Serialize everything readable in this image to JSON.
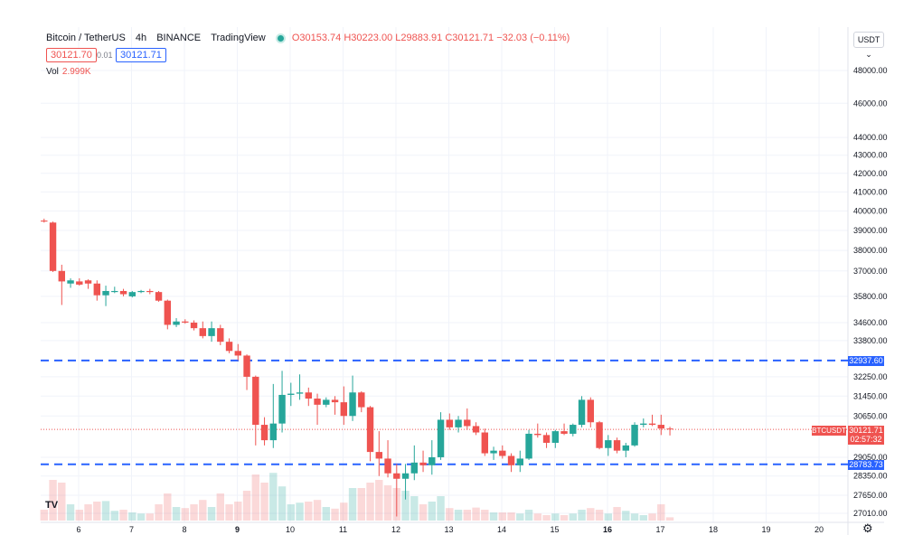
{
  "header": {
    "symbol": "Bitcoin / TetherUS",
    "interval": "4h",
    "exchange": "BINANCE",
    "source": "TradingView",
    "open": "O30153.74",
    "high": "H30223.00",
    "low": "L29883.91",
    "close": "C30121.71",
    "change": "−32.03 (−0.11%)",
    "bid": "30121.70",
    "spread": "0.01",
    "ask": "30121.71",
    "volume_label": "Vol",
    "volume_value": "2.999K",
    "currency": "USDT"
  },
  "labels": {
    "line_upper": "32937.60",
    "line_lower": "28783.73",
    "symbol_tag": "BTCUSDT",
    "last_price": "30121.71",
    "countdown": "02:57:32",
    "logo": "TV"
  },
  "colors": {
    "up": "#26a69a",
    "down": "#ef5350",
    "line": "#2962ff"
  },
  "icons": {
    "settings": "gear-icon",
    "logo": "tradingview-logo-icon"
  },
  "chart_data": {
    "type": "candlestick",
    "scale": "log",
    "y_ticks": [
      48000,
      46000,
      44000,
      43000,
      42000,
      41000,
      40000,
      39000,
      38000,
      37000,
      35800,
      34600,
      33800,
      32250,
      31450,
      30650,
      29050,
      28350,
      27650,
      27010
    ],
    "y_tick_labels": [
      "48000.00",
      "46000.00",
      "44000.00",
      "43000.00",
      "42000.00",
      "41000.00",
      "40000.00",
      "39000.00",
      "38000.00",
      "37000.00",
      "35800.00",
      "34600.00",
      "33800.00",
      "32250.00",
      "31450.00",
      "30650.00",
      "29050.00",
      "28350.00",
      "27650.00",
      "27010.00"
    ],
    "x_ticks": [
      "6",
      "7",
      "8",
      "9",
      "10",
      "11",
      "12",
      "13",
      "14",
      "15",
      "16",
      "17",
      "18",
      "19",
      "20"
    ],
    "bold_x_ticks": [
      "9",
      "16"
    ],
    "horizontal_lines": [
      32937.6,
      28783.73
    ],
    "last_price": 30121.71,
    "candles": [
      {
        "o": 39500,
        "h": 39600,
        "l": 39400,
        "c": 39450,
        "v": 0.2
      },
      {
        "o": 39400,
        "h": 39450,
        "l": 36950,
        "c": 37000,
        "v": 0.75
      },
      {
        "o": 37000,
        "h": 37300,
        "l": 35400,
        "c": 36500,
        "v": 0.7
      },
      {
        "o": 36400,
        "h": 36650,
        "l": 36200,
        "c": 36550,
        "v": 0.3
      },
      {
        "o": 36500,
        "h": 36650,
        "l": 36300,
        "c": 36350,
        "v": 0.2
      },
      {
        "o": 36550,
        "h": 36600,
        "l": 36150,
        "c": 36400,
        "v": 0.3
      },
      {
        "o": 36400,
        "h": 36550,
        "l": 35600,
        "c": 35850,
        "v": 0.35
      },
      {
        "o": 35850,
        "h": 36300,
        "l": 35350,
        "c": 36050,
        "v": 0.36
      },
      {
        "o": 36000,
        "h": 36250,
        "l": 35950,
        "c": 36050,
        "v": 0.18
      },
      {
        "o": 36050,
        "h": 36150,
        "l": 35800,
        "c": 35900,
        "v": 0.2
      },
      {
        "o": 35800,
        "h": 36050,
        "l": 35750,
        "c": 36000,
        "v": 0.15
      },
      {
        "o": 36000,
        "h": 36100,
        "l": 35950,
        "c": 36050,
        "v": 0.13
      },
      {
        "o": 36050,
        "h": 36150,
        "l": 35900,
        "c": 36000,
        "v": 0.13
      },
      {
        "o": 36000,
        "h": 36050,
        "l": 35550,
        "c": 35600,
        "v": 0.3
      },
      {
        "o": 35600,
        "h": 35650,
        "l": 34300,
        "c": 34500,
        "v": 0.5
      },
      {
        "o": 34500,
        "h": 34800,
        "l": 34400,
        "c": 34650,
        "v": 0.25
      },
      {
        "o": 34650,
        "h": 34750,
        "l": 34550,
        "c": 34600,
        "v": 0.23
      },
      {
        "o": 34600,
        "h": 34700,
        "l": 34250,
        "c": 34350,
        "v": 0.3
      },
      {
        "o": 34350,
        "h": 34650,
        "l": 33900,
        "c": 34000,
        "v": 0.38
      },
      {
        "o": 34000,
        "h": 34650,
        "l": 33750,
        "c": 34350,
        "v": 0.25
      },
      {
        "o": 34350,
        "h": 34500,
        "l": 33600,
        "c": 33750,
        "v": 0.5
      },
      {
        "o": 33750,
        "h": 33900,
        "l": 33250,
        "c": 33350,
        "v": 0.3
      },
      {
        "o": 33350,
        "h": 33650,
        "l": 32950,
        "c": 33150,
        "v": 0.35
      },
      {
        "o": 33150,
        "h": 33200,
        "l": 31700,
        "c": 32250,
        "v": 0.55
      },
      {
        "o": 32250,
        "h": 32300,
        "l": 29500,
        "c": 30300,
        "v": 0.85
      },
      {
        "o": 30300,
        "h": 30600,
        "l": 29500,
        "c": 29700,
        "v": 0.7
      },
      {
        "o": 29700,
        "h": 31950,
        "l": 29400,
        "c": 30350,
        "v": 0.88
      },
      {
        "o": 30350,
        "h": 32500,
        "l": 30000,
        "c": 31500,
        "v": 0.63
      },
      {
        "o": 31500,
        "h": 32000,
        "l": 31050,
        "c": 31550,
        "v": 0.3
      },
      {
        "o": 31550,
        "h": 32350,
        "l": 31300,
        "c": 31600,
        "v": 0.33
      },
      {
        "o": 31600,
        "h": 31800,
        "l": 31050,
        "c": 31350,
        "v": 0.35
      },
      {
        "o": 31350,
        "h": 31550,
        "l": 30300,
        "c": 31100,
        "v": 0.38
      },
      {
        "o": 31100,
        "h": 31400,
        "l": 31000,
        "c": 31300,
        "v": 0.25
      },
      {
        "o": 31300,
        "h": 31450,
        "l": 30700,
        "c": 31200,
        "v": 0.22
      },
      {
        "o": 31200,
        "h": 31850,
        "l": 30300,
        "c": 30650,
        "v": 0.33
      },
      {
        "o": 30650,
        "h": 32300,
        "l": 30450,
        "c": 31600,
        "v": 0.6
      },
      {
        "o": 31600,
        "h": 31650,
        "l": 30800,
        "c": 31000,
        "v": 0.6
      },
      {
        "o": 31000,
        "h": 31050,
        "l": 28900,
        "c": 29250,
        "v": 0.7
      },
      {
        "o": 29250,
        "h": 30050,
        "l": 28350,
        "c": 29000,
        "v": 0.75
      },
      {
        "o": 29000,
        "h": 29700,
        "l": 28300,
        "c": 28450,
        "v": 0.65
      },
      {
        "o": 28450,
        "h": 28800,
        "l": 26900,
        "c": 28250,
        "v": 0.6
      },
      {
        "o": 28250,
        "h": 28800,
        "l": 27500,
        "c": 28450,
        "v": 0.55
      },
      {
        "o": 28450,
        "h": 29500,
        "l": 28200,
        "c": 28850,
        "v": 0.45
      },
      {
        "o": 28850,
        "h": 29300,
        "l": 28500,
        "c": 28750,
        "v": 0.3
      },
      {
        "o": 28750,
        "h": 29700,
        "l": 28400,
        "c": 29050,
        "v": 0.35
      },
      {
        "o": 29050,
        "h": 30800,
        "l": 28950,
        "c": 30500,
        "v": 0.45
      },
      {
        "o": 30500,
        "h": 30750,
        "l": 30100,
        "c": 30200,
        "v": 0.23
      },
      {
        "o": 30200,
        "h": 30650,
        "l": 30000,
        "c": 30500,
        "v": 0.2
      },
      {
        "o": 30500,
        "h": 30950,
        "l": 30100,
        "c": 30250,
        "v": 0.2
      },
      {
        "o": 30250,
        "h": 30400,
        "l": 29900,
        "c": 30000,
        "v": 0.24
      },
      {
        "o": 30000,
        "h": 30150,
        "l": 29100,
        "c": 29200,
        "v": 0.2
      },
      {
        "o": 29200,
        "h": 29450,
        "l": 28950,
        "c": 29300,
        "v": 0.15
      },
      {
        "o": 29300,
        "h": 29500,
        "l": 29000,
        "c": 29100,
        "v": 0.15
      },
      {
        "o": 29100,
        "h": 29200,
        "l": 28500,
        "c": 28750,
        "v": 0.15
      },
      {
        "o": 28750,
        "h": 29300,
        "l": 28500,
        "c": 29000,
        "v": 0.13
      },
      {
        "o": 29000,
        "h": 30100,
        "l": 28950,
        "c": 29950,
        "v": 0.2
      },
      {
        "o": 29950,
        "h": 30350,
        "l": 29800,
        "c": 29900,
        "v": 0.13
      },
      {
        "o": 29900,
        "h": 30000,
        "l": 29400,
        "c": 29600,
        "v": 0.1
      },
      {
        "o": 29600,
        "h": 30100,
        "l": 29400,
        "c": 30050,
        "v": 0.13
      },
      {
        "o": 30050,
        "h": 30350,
        "l": 29900,
        "c": 29950,
        "v": 0.1
      },
      {
        "o": 29950,
        "h": 30350,
        "l": 29850,
        "c": 30300,
        "v": 0.13
      },
      {
        "o": 30300,
        "h": 31450,
        "l": 30200,
        "c": 31300,
        "v": 0.2
      },
      {
        "o": 31300,
        "h": 31400,
        "l": 30200,
        "c": 30400,
        "v": 0.23
      },
      {
        "o": 30400,
        "h": 30450,
        "l": 29350,
        "c": 29400,
        "v": 0.2
      },
      {
        "o": 29400,
        "h": 29900,
        "l": 29100,
        "c": 29700,
        "v": 0.13
      },
      {
        "o": 29700,
        "h": 29800,
        "l": 29200,
        "c": 29300,
        "v": 0.25
      },
      {
        "o": 29300,
        "h": 29600,
        "l": 29050,
        "c": 29500,
        "v": 0.18
      },
      {
        "o": 29500,
        "h": 30400,
        "l": 29450,
        "c": 30300,
        "v": 0.13
      },
      {
        "o": 30300,
        "h": 30550,
        "l": 30200,
        "c": 30350,
        "v": 0.1
      },
      {
        "o": 30350,
        "h": 30700,
        "l": 30250,
        "c": 30300,
        "v": 0.13
      },
      {
        "o": 30300,
        "h": 30700,
        "l": 29900,
        "c": 30153.74,
        "v": 0.3
      },
      {
        "o": 30153.74,
        "h": 30223,
        "l": 29883.91,
        "c": 30121.71,
        "v": 0.06
      }
    ]
  }
}
